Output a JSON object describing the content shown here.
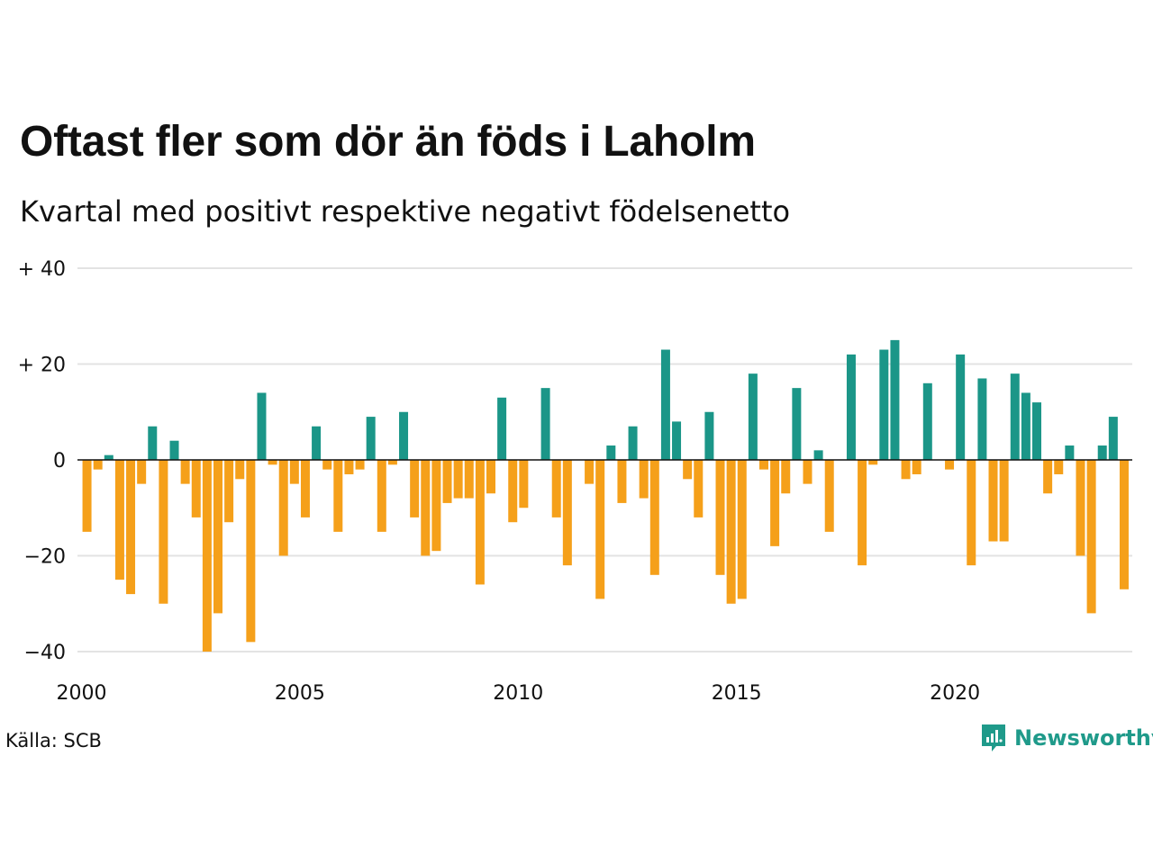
{
  "title": "Oftast fler som dör än föds i Laholm",
  "subtitle": "Kvartal med positivt respektive negativt födelsenetto",
  "source": "Källa: SCB",
  "brand": "Newsworthy",
  "colors": {
    "positive": "#1b9688",
    "negative": "#f5a01a",
    "grid": "#e3e3e3",
    "zero": "#111111",
    "brand": "#1f9a8a"
  },
  "chart_data": {
    "type": "bar",
    "x_start_year": 2000,
    "quarters_per_year": 4,
    "ylim": [
      -40,
      40
    ],
    "y_ticks": [
      40,
      20,
      0,
      -20,
      -40
    ],
    "y_tick_labels": [
      "+ 40",
      "+ 20",
      "0",
      "−20",
      "−40"
    ],
    "x_ticks": [
      2000,
      2005,
      2010,
      2015,
      2020
    ],
    "x_tick_labels": [
      "2000",
      "2005",
      "2010",
      "2015",
      "2020"
    ],
    "values": [
      -15,
      -2,
      1,
      -25,
      -28,
      -5,
      7,
      -30,
      4,
      -5,
      -12,
      -40,
      -32,
      -13,
      -4,
      -38,
      14,
      -1,
      -20,
      -5,
      -12,
      7,
      -2,
      -15,
      -3,
      -2,
      9,
      -15,
      -1,
      10,
      -12,
      -20,
      -19,
      -9,
      -8,
      -8,
      -26,
      -7,
      13,
      -13,
      -10,
      0,
      15,
      -12,
      -22,
      0,
      -5,
      -29,
      3,
      -9,
      7,
      -8,
      -24,
      23,
      8,
      -4,
      -12,
      10,
      -24,
      -30,
      -29,
      18,
      -2,
      -18,
      -7,
      15,
      -5,
      2,
      -15,
      0,
      22,
      -22,
      -1,
      23,
      25,
      -4,
      -3,
      16,
      0,
      -2,
      22,
      -22,
      17,
      -17,
      -17,
      18,
      14,
      12,
      -7,
      -3,
      3,
      -20,
      -32,
      3,
      9,
      -27
    ]
  }
}
